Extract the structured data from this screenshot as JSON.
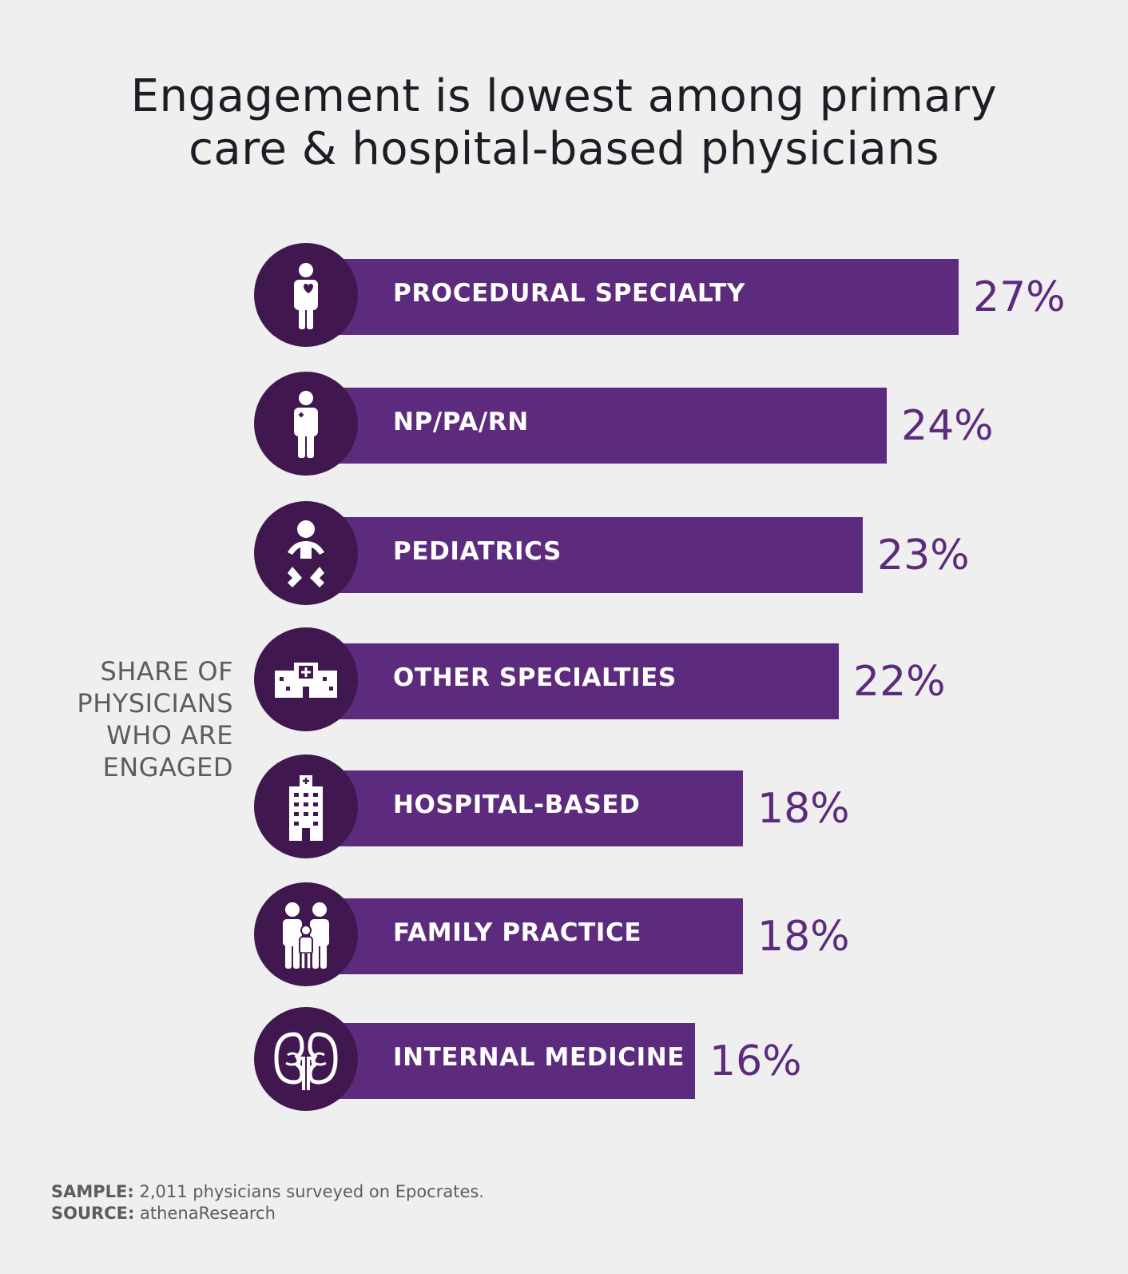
{
  "title_line1": "Engagement is lowest among primary",
  "title_line2": "care & hospital-based physicians",
  "side_label": [
    "SHARE OF",
    "PHYSICIANS",
    "WHO ARE",
    "ENGAGED"
  ],
  "footer": {
    "sample_key": "SAMPLE:",
    "sample_text": "2,011 physicians surveyed on Epocrates.",
    "source_key": "SOURCE:",
    "source_text": "athenaResearch"
  },
  "colors": {
    "bar": "#5d2b7d",
    "icon_circle": "#40184f",
    "value_text": "#5d2b7d",
    "background": "#f0efef"
  },
  "chart_data": {
    "type": "bar",
    "orientation": "horizontal",
    "categories": [
      "PROCEDURAL SPECIALTY",
      "NP/PA/RN",
      "PEDIATRICS",
      "OTHER SPECIALTIES",
      "HOSPITAL-BASED",
      "FAMILY PRACTICE",
      "INTERNAL MEDICINE"
    ],
    "values": [
      27,
      24,
      23,
      22,
      18,
      18,
      16
    ],
    "value_labels": [
      "27%",
      "24%",
      "23%",
      "22%",
      "18%",
      "18%",
      "16%"
    ],
    "icons": [
      "doctor-heart-icon",
      "nurse-icon",
      "baby-icon",
      "clinic-icon",
      "hospital-building-icon",
      "family-icon",
      "kidneys-icon"
    ],
    "unit": "%"
  }
}
